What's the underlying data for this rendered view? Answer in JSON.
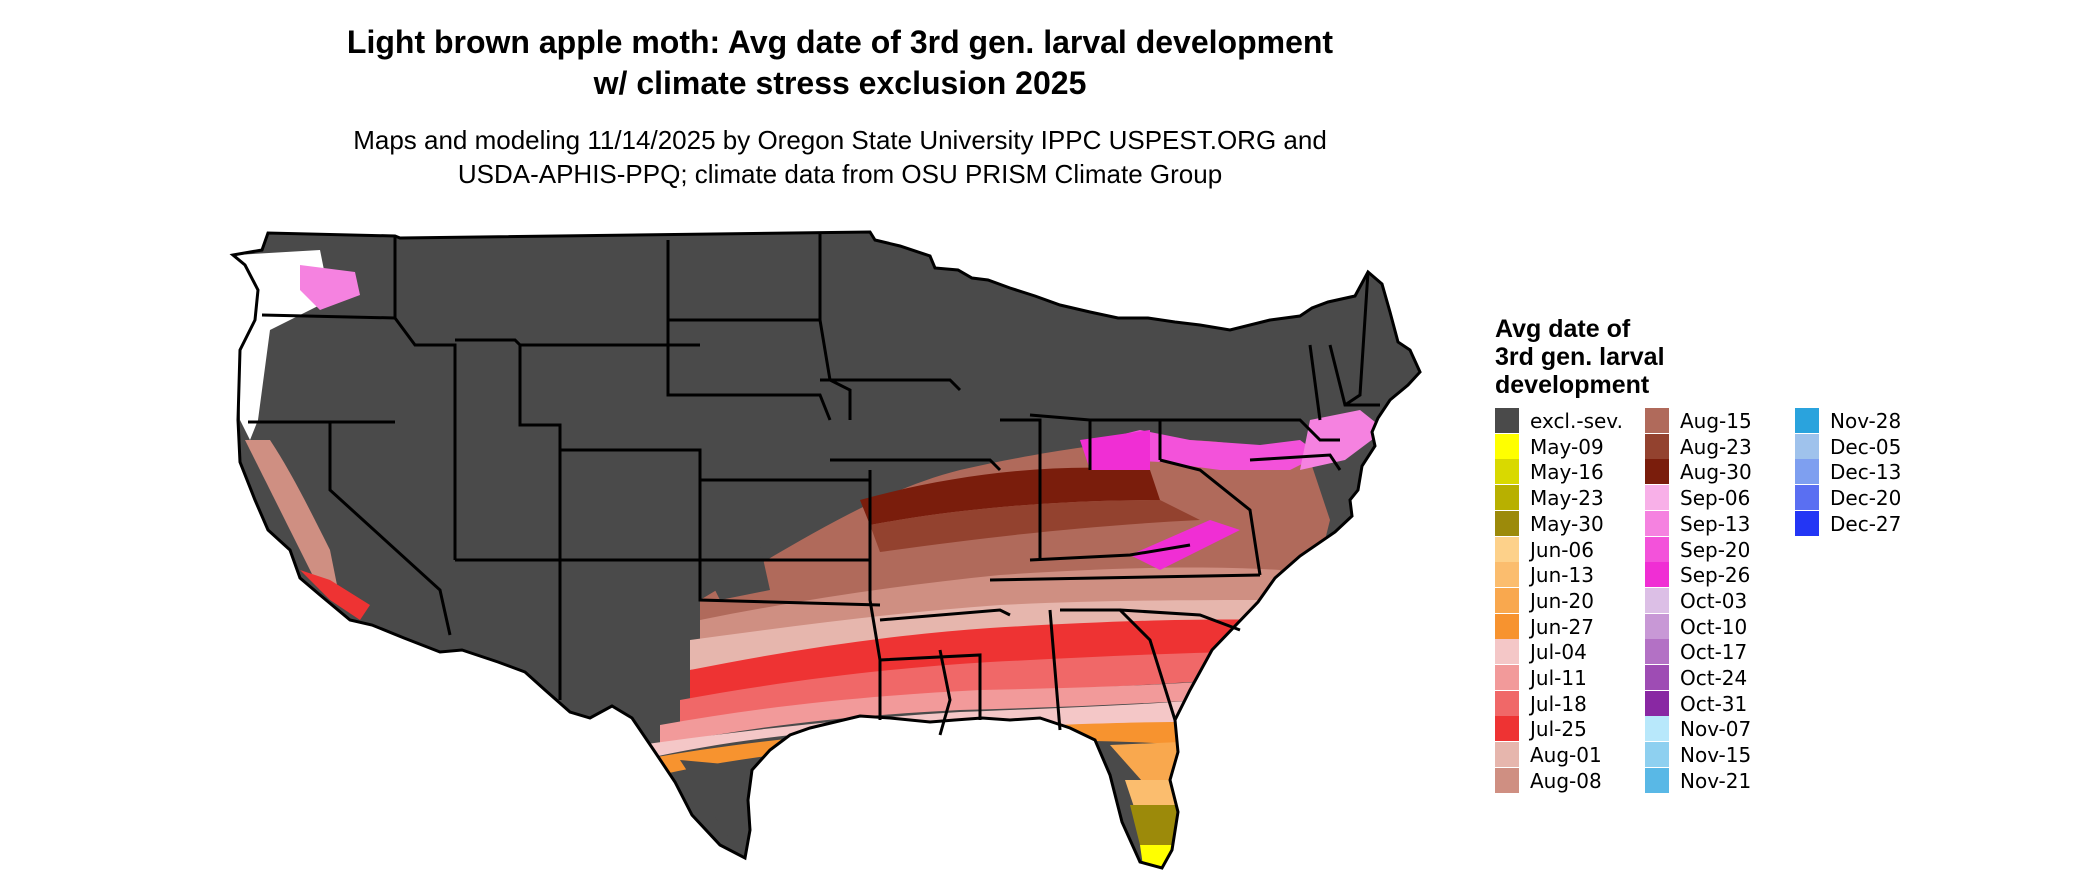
{
  "title_line1": "Light brown apple moth: Avg date of 3rd gen. larval development",
  "title_line2": "w/ climate stress exclusion 2025",
  "subtitle_line1": "Maps and modeling 11/14/2025 by Oregon State University IPPC USPEST.ORG and",
  "subtitle_line2": "USDA-APHIS-PPQ; climate data from OSU PRISM Climate Group",
  "legend": {
    "title_line1": "Avg date of",
    "title_line2": "3rd gen. larval",
    "title_line3": "development",
    "columns": [
      [
        {
          "label": "excl.-sev.",
          "color": "#4a4a4a"
        },
        {
          "label": "May-09",
          "color": "#ffff00"
        },
        {
          "label": "May-16",
          "color": "#d9d900"
        },
        {
          "label": "May-23",
          "color": "#b8b000"
        },
        {
          "label": "May-30",
          "color": "#9c8a0a"
        },
        {
          "label": "Jun-06",
          "color": "#fdd18a"
        },
        {
          "label": "Jun-13",
          "color": "#fbbd6e"
        },
        {
          "label": "Jun-20",
          "color": "#f9a84e"
        },
        {
          "label": "Jun-27",
          "color": "#f7932f"
        },
        {
          "label": "Jul-04",
          "color": "#f4c7c7"
        },
        {
          "label": "Jul-11",
          "color": "#f29a9a"
        },
        {
          "label": "Jul-18",
          "color": "#f06868"
        },
        {
          "label": "Jul-25",
          "color": "#ee3333"
        },
        {
          "label": "Aug-01",
          "color": "#e6b6ad"
        },
        {
          "label": "Aug-08",
          "color": "#cf8f82"
        }
      ],
      [
        {
          "label": "Aug-15",
          "color": "#b06a5b"
        },
        {
          "label": "Aug-23",
          "color": "#93422f"
        },
        {
          "label": "Aug-30",
          "color": "#7a1d0c"
        },
        {
          "label": "Sep-06",
          "color": "#f8b0e8"
        },
        {
          "label": "Sep-13",
          "color": "#f582e0"
        },
        {
          "label": "Sep-20",
          "color": "#f352da"
        },
        {
          "label": "Sep-26",
          "color": "#f02ed4"
        },
        {
          "label": "Oct-03",
          "color": "#dcbfe6"
        },
        {
          "label": "Oct-10",
          "color": "#c898d6"
        },
        {
          "label": "Oct-17",
          "color": "#b371c5"
        },
        {
          "label": "Oct-24",
          "color": "#9e4cb4"
        },
        {
          "label": "Oct-31",
          "color": "#8928a3"
        },
        {
          "label": "Nov-07",
          "color": "#b8e8fb"
        },
        {
          "label": "Nov-15",
          "color": "#8ed0f0"
        },
        {
          "label": "Nov-21",
          "color": "#59b8e6"
        }
      ],
      [
        {
          "label": "Nov-28",
          "color": "#2aa3dd"
        },
        {
          "label": "Dec-05",
          "color": "#9fc2ec"
        },
        {
          "label": "Dec-13",
          "color": "#7e9ff0"
        },
        {
          "label": "Dec-20",
          "color": "#5a6ff2"
        },
        {
          "label": "Dec-27",
          "color": "#2336f5"
        }
      ]
    ]
  }
}
